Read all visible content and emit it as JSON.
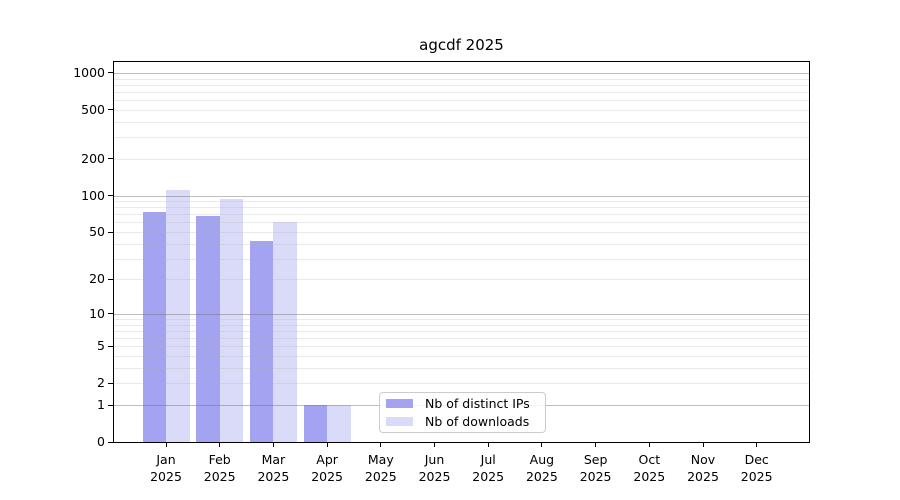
{
  "chart_data": {
    "type": "bar",
    "title": "agcdf 2025",
    "categories": [
      "Jan",
      "Feb",
      "Mar",
      "Apr",
      "May",
      "Jun",
      "Jul",
      "Aug",
      "Sep",
      "Oct",
      "Nov",
      "Dec"
    ],
    "year": "2025",
    "series": [
      {
        "name": "Nb of distinct IPs",
        "color": "#a3a3f1",
        "values": [
          73,
          68,
          42,
          1,
          0,
          0,
          0,
          0,
          0,
          0,
          0,
          0
        ]
      },
      {
        "name": "Nb of downloads",
        "color": "#dadaf9",
        "values": [
          112,
          94,
          60,
          1,
          0,
          0,
          0,
          0,
          0,
          0,
          0,
          0
        ]
      }
    ],
    "y_axis": {
      "scale": "log1p",
      "ticks": [
        0,
        1,
        2,
        5,
        10,
        20,
        50,
        100,
        200,
        500,
        1000
      ],
      "major_gridlines": [
        1,
        10,
        100,
        1000
      ],
      "range_top": 1245
    },
    "x_axis": {
      "label_lines": 2
    },
    "legend": {
      "position": "lower-center"
    },
    "grid": {
      "major_color": "#b4b4b4",
      "minor_color": "#e6e6e6"
    }
  }
}
